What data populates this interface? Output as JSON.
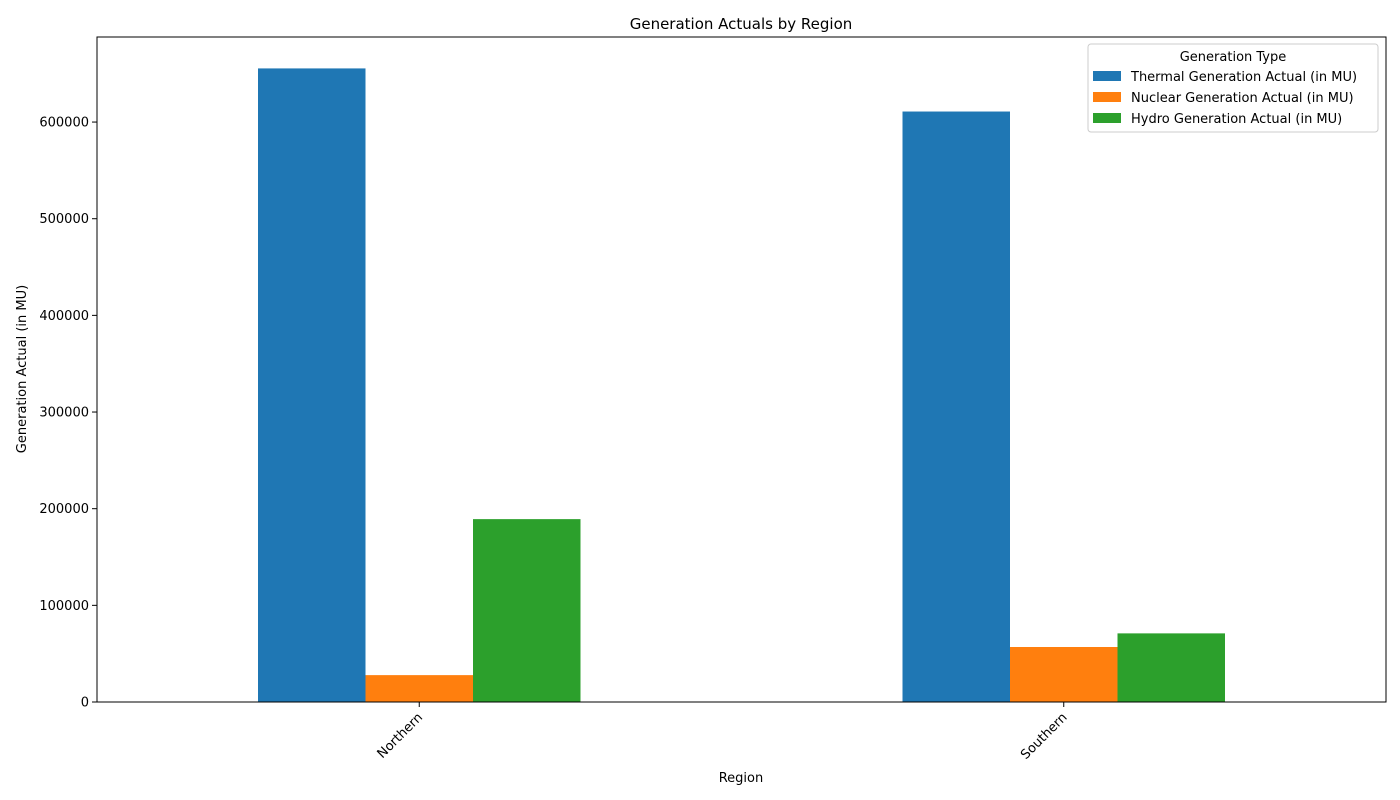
{
  "chart_data": {
    "type": "bar",
    "title": "Generation Actuals by Region",
    "xlabel": "Region",
    "ylabel": "Generation Actual (in MU)",
    "categories": [
      "Northern",
      "Southern"
    ],
    "series": [
      {
        "name": "Thermal Generation Actual (in MU)",
        "color": "#1f77b4",
        "values": [
          655500,
          610900
        ]
      },
      {
        "name": "Nuclear Generation Actual (in MU)",
        "color": "#ff7f0e",
        "values": [
          27800,
          56900
        ]
      },
      {
        "name": "Hydro Generation Actual (in MU)",
        "color": "#2ca02c",
        "values": [
          189200,
          71000
        ]
      }
    ],
    "yticks": [
      "0",
      "100000",
      "200000",
      "300000",
      "400000",
      "500000",
      "600000"
    ],
    "ylim": [
      0,
      688000
    ],
    "legend": {
      "title": "Generation Type",
      "placement": "top-right"
    },
    "grid": false
  }
}
